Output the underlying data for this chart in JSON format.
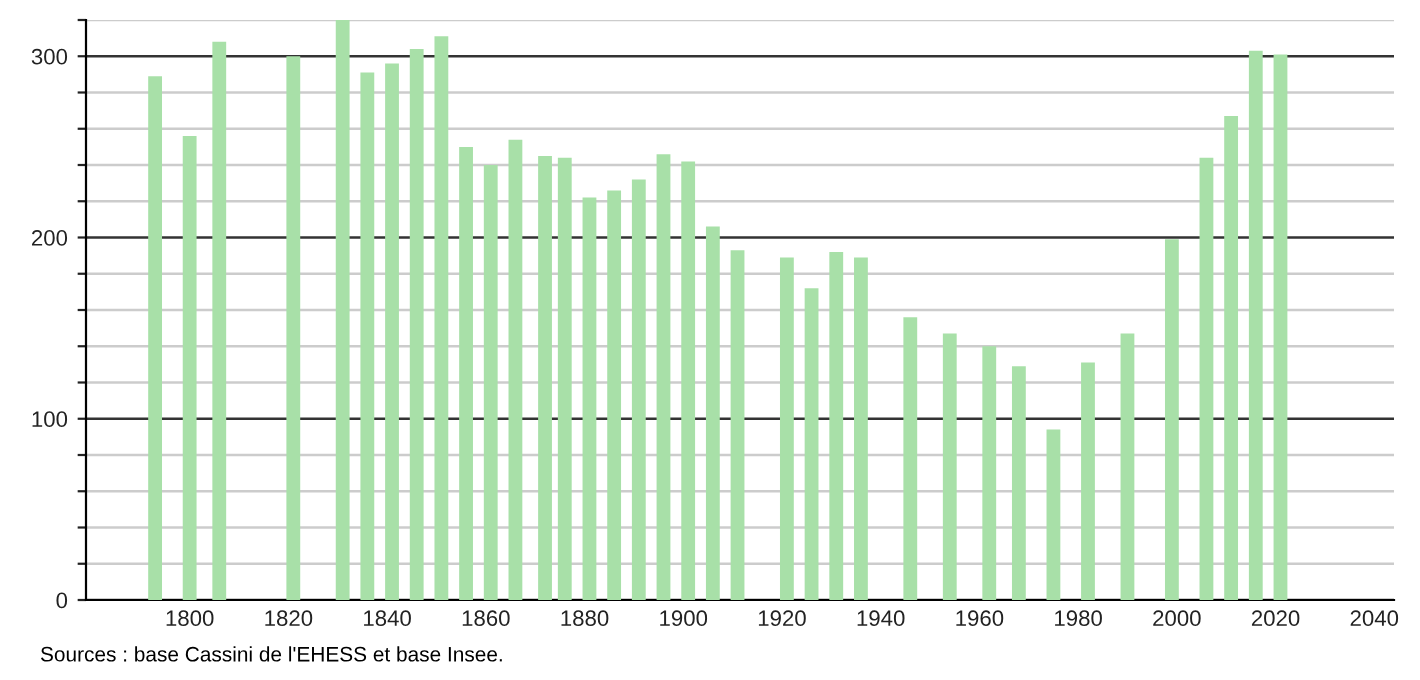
{
  "chart_data": {
    "type": "bar",
    "x": [
      1793,
      1800,
      1806,
      1821,
      1831,
      1836,
      1841,
      1846,
      1851,
      1856,
      1861,
      1866,
      1872,
      1876,
      1881,
      1886,
      1891,
      1896,
      1901,
      1906,
      1911,
      1921,
      1926,
      1931,
      1936,
      1946,
      1954,
      1962,
      1968,
      1975,
      1982,
      1990,
      1999,
      2006,
      2011,
      2016,
      2021
    ],
    "values": [
      289,
      256,
      308,
      300,
      320,
      291,
      296,
      304,
      311,
      250,
      240,
      254,
      245,
      244,
      222,
      226,
      232,
      246,
      242,
      206,
      193,
      189,
      172,
      192,
      189,
      156,
      147,
      140,
      129,
      94,
      131,
      147,
      199,
      244,
      267,
      303,
      301
    ],
    "color": "#a8e0a8",
    "xlim": [
      1779,
      2044
    ],
    "xticks": [
      1800,
      1820,
      1840,
      1860,
      1880,
      1900,
      1920,
      1940,
      1960,
      1980,
      2000,
      2020,
      2040
    ],
    "ylim": [
      0,
      320
    ],
    "yticks": [
      0,
      {
        "value": 20,
        "label": null
      },
      {
        "value": 40,
        "label": null
      },
      {
        "value": 60,
        "label": null
      },
      {
        "value": 80,
        "label": null
      },
      100,
      {
        "value": 120,
        "label": null
      },
      {
        "value": 140,
        "label": null
      },
      {
        "value": 160,
        "label": null
      },
      {
        "value": 180,
        "label": null
      },
      200,
      {
        "value": 220,
        "label": null
      },
      {
        "value": 240,
        "label": null
      },
      {
        "value": 260,
        "label": null
      },
      {
        "value": 280,
        "label": null
      },
      300,
      {
        "value": 320,
        "label": null
      }
    ],
    "grid": "y",
    "legend": false,
    "annotations": [
      "Sources : base Cassini de l'EHESS et base Insee."
    ]
  }
}
